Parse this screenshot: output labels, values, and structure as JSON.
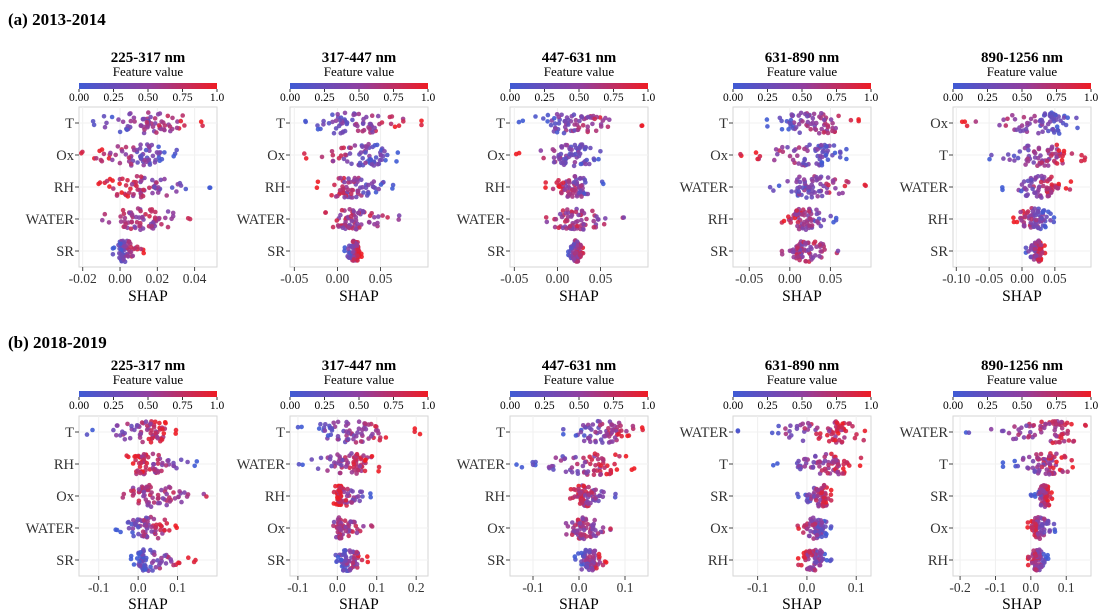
{
  "figure": {
    "rows": [
      {
        "label": "(a) 2013-2014"
      },
      {
        "label": "(b) 2018-2019"
      }
    ]
  },
  "colors": {
    "low": "#3f5bd4",
    "mid": "#8f3fa0",
    "high": "#ee1c24"
  },
  "chart_data": [
    {
      "type": "scatter",
      "panel": "a1",
      "title": "225-317 nm",
      "colorbar": {
        "label": "Feature value",
        "ticks": [
          "0.00",
          "0.25",
          "0.50",
          "0.75",
          "1.0"
        ]
      },
      "xlabel": "SHAP",
      "xlim": [
        -0.022,
        0.052
      ],
      "xticks": [
        -0.02,
        0.0,
        0.02,
        0.04
      ],
      "xtick_labels": [
        "-0.02",
        "0.00",
        "0.02",
        "0.04"
      ],
      "features": [
        "T",
        "Ox",
        "RH",
        "WATER",
        "SR"
      ],
      "distributions": [
        {
          "feature": "T",
          "min": -0.017,
          "max": 0.045,
          "center": 0.014,
          "trend": 1
        },
        {
          "feature": "Ox",
          "min": -0.021,
          "max": 0.031,
          "center": 0.01,
          "trend": -1
        },
        {
          "feature": "RH",
          "min": -0.012,
          "max": 0.049,
          "center": 0.012,
          "trend": -1
        },
        {
          "feature": "WATER",
          "min": -0.01,
          "max": 0.039,
          "center": 0.013,
          "trend": 0
        },
        {
          "feature": "SR",
          "min": -0.004,
          "max": 0.013,
          "center": 0.002,
          "trend": 1
        }
      ]
    },
    {
      "type": "scatter",
      "panel": "a2",
      "title": "317-447 nm",
      "colorbar": {
        "label": "Feature value",
        "ticks": [
          "0.00",
          "0.25",
          "0.50",
          "0.75",
          "1.0"
        ]
      },
      "xlabel": "SHAP",
      "xlim": [
        -0.055,
        0.105
      ],
      "xticks": [
        -0.05,
        0.0,
        0.05
      ],
      "xtick_labels": [
        "-0.05",
        "0.00",
        "0.05"
      ],
      "features": [
        "T",
        "Ox",
        "RH",
        "WATER",
        "SR"
      ],
      "distributions": [
        {
          "feature": "T",
          "min": -0.04,
          "max": 0.1,
          "center": 0.015,
          "trend": 1
        },
        {
          "feature": "Ox",
          "min": -0.04,
          "max": 0.07,
          "center": 0.03,
          "trend": -1
        },
        {
          "feature": "RH",
          "min": -0.025,
          "max": 0.065,
          "center": 0.015,
          "trend": -1
        },
        {
          "feature": "WATER",
          "min": -0.015,
          "max": 0.075,
          "center": 0.02,
          "trend": 0
        },
        {
          "feature": "SR",
          "min": 0.008,
          "max": 0.028,
          "center": 0.02,
          "trend": 1
        }
      ]
    },
    {
      "type": "scatter",
      "panel": "a3",
      "title": "447-631 nm",
      "colorbar": {
        "label": "Feature value",
        "ticks": [
          "0.00",
          "0.25",
          "0.50",
          "0.75",
          "1.0"
        ]
      },
      "xlabel": "SHAP",
      "xlim": [
        -0.055,
        0.105
      ],
      "xticks": [
        -0.05,
        0.0,
        0.05
      ],
      "xtick_labels": [
        "-0.05",
        "0.00",
        "0.05"
      ],
      "features": [
        "T",
        "Ox",
        "RH",
        "WATER",
        "SR"
      ],
      "distributions": [
        {
          "feature": "T",
          "min": -0.045,
          "max": 0.1,
          "center": 0.02,
          "trend": 1
        },
        {
          "feature": "Ox",
          "min": -0.05,
          "max": 0.05,
          "center": 0.02,
          "trend": -1
        },
        {
          "feature": "RH",
          "min": -0.015,
          "max": 0.055,
          "center": 0.02,
          "trend": -1
        },
        {
          "feature": "WATER",
          "min": -0.015,
          "max": 0.08,
          "center": 0.02,
          "trend": 0
        },
        {
          "feature": "SR",
          "min": 0.012,
          "max": 0.03,
          "center": 0.022,
          "trend": 1
        }
      ]
    },
    {
      "type": "scatter",
      "panel": "a4",
      "title": "631-890 nm",
      "colorbar": {
        "label": "Feature value",
        "ticks": [
          "0.00",
          "0.25",
          "0.50",
          "0.75",
          "1.0"
        ]
      },
      "xlabel": "SHAP",
      "xlim": [
        -0.07,
        0.1
      ],
      "xticks": [
        -0.05,
        0.0,
        0.05
      ],
      "xtick_labels": [
        "-0.05",
        "0.00",
        "0.05"
      ],
      "features": [
        "T",
        "Ox",
        "WATER",
        "RH",
        "SR"
      ],
      "distributions": [
        {
          "feature": "T",
          "min": -0.03,
          "max": 0.09,
          "center": 0.03,
          "trend": 1
        },
        {
          "feature": "Ox",
          "min": -0.065,
          "max": 0.07,
          "center": 0.03,
          "trend": -1
        },
        {
          "feature": "WATER",
          "min": -0.025,
          "max": 0.095,
          "center": 0.025,
          "trend": 1
        },
        {
          "feature": "RH",
          "min": -0.01,
          "max": 0.06,
          "center": 0.02,
          "trend": -1
        },
        {
          "feature": "SR",
          "min": -0.01,
          "max": 0.06,
          "center": 0.02,
          "trend": 0
        }
      ]
    },
    {
      "type": "scatter",
      "panel": "a5",
      "title": "890-1256 nm",
      "colorbar": {
        "label": "Feature value",
        "ticks": [
          "0.00",
          "0.25",
          "0.50",
          "0.75",
          "1.0"
        ]
      },
      "xlabel": "SHAP",
      "xlim": [
        -0.105,
        0.105
      ],
      "xticks": [
        -0.1,
        -0.05,
        0.0,
        0.05
      ],
      "xtick_labels": [
        "-0.10",
        "-0.05",
        "0.00",
        "0.05"
      ],
      "features": [
        "Ox",
        "T",
        "WATER",
        "RH",
        "SR"
      ],
      "distributions": [
        {
          "feature": "Ox",
          "min": -0.095,
          "max": 0.085,
          "center": 0.04,
          "trend": -1
        },
        {
          "feature": "T",
          "min": -0.055,
          "max": 0.1,
          "center": 0.03,
          "trend": 1
        },
        {
          "feature": "WATER",
          "min": -0.03,
          "max": 0.075,
          "center": 0.03,
          "trend": 1
        },
        {
          "feature": "RH",
          "min": -0.015,
          "max": 0.05,
          "center": 0.02,
          "trend": -1
        },
        {
          "feature": "SR",
          "min": 0.005,
          "max": 0.035,
          "center": 0.025,
          "trend": 1
        }
      ]
    },
    {
      "type": "scatter",
      "panel": "b1",
      "title": "225-317 nm",
      "colorbar": {
        "label": "Feature value",
        "ticks": [
          "0.00",
          "0.25",
          "0.50",
          "0.75",
          "1.0"
        ]
      },
      "xlabel": "SHAP",
      "xlim": [
        -0.15,
        0.2
      ],
      "xticks": [
        -0.1,
        0.0,
        0.1
      ],
      "xtick_labels": [
        "-0.1",
        "0.0",
        "0.1"
      ],
      "features": [
        "T",
        "RH",
        "Ox",
        "WATER",
        "SR"
      ],
      "distributions": [
        {
          "feature": "T",
          "min": -0.13,
          "max": 0.1,
          "center": 0.03,
          "trend": 1
        },
        {
          "feature": "RH",
          "min": -0.03,
          "max": 0.15,
          "center": 0.02,
          "trend": -1
        },
        {
          "feature": "Ox",
          "min": -0.04,
          "max": 0.18,
          "center": 0.03,
          "trend": 0
        },
        {
          "feature": "WATER",
          "min": -0.06,
          "max": 0.1,
          "center": 0.03,
          "trend": 1
        },
        {
          "feature": "SR",
          "min": -0.02,
          "max": 0.15,
          "center": 0.02,
          "trend": 1
        }
      ]
    },
    {
      "type": "scatter",
      "panel": "b2",
      "title": "317-447 nm",
      "colorbar": {
        "label": "Feature value",
        "ticks": [
          "0.00",
          "0.25",
          "0.50",
          "0.75",
          "1.0"
        ]
      },
      "xlabel": "SHAP",
      "xlim": [
        -0.12,
        0.23
      ],
      "xticks": [
        -0.1,
        0.0,
        0.1,
        0.2
      ],
      "xtick_labels": [
        "-0.1",
        "0.0",
        "0.1",
        "0.2"
      ],
      "features": [
        "T",
        "WATER",
        "RH",
        "Ox",
        "SR"
      ],
      "distributions": [
        {
          "feature": "T",
          "min": -0.1,
          "max": 0.21,
          "center": 0.04,
          "trend": 1
        },
        {
          "feature": "WATER",
          "min": -0.1,
          "max": 0.11,
          "center": 0.04,
          "trend": 1
        },
        {
          "feature": "RH",
          "min": -0.01,
          "max": 0.09,
          "center": 0.01,
          "trend": -1
        },
        {
          "feature": "Ox",
          "min": -0.01,
          "max": 0.09,
          "center": 0.01,
          "trend": 0
        },
        {
          "feature": "SR",
          "min": -0.005,
          "max": 0.08,
          "center": 0.025,
          "trend": 1
        }
      ]
    },
    {
      "type": "scatter",
      "panel": "b3",
      "title": "447-631 nm",
      "colorbar": {
        "label": "Feature value",
        "ticks": [
          "0.00",
          "0.25",
          "0.50",
          "0.75",
          "1.0"
        ]
      },
      "xlabel": "SHAP",
      "xlim": [
        -0.15,
        0.15
      ],
      "xticks": [
        -0.1,
        0.0,
        0.1
      ],
      "xtick_labels": [
        "-0.1",
        "0.0",
        "0.1"
      ],
      "features": [
        "T",
        "WATER",
        "RH",
        "Ox",
        "SR"
      ],
      "distributions": [
        {
          "feature": "T",
          "min": -0.04,
          "max": 0.14,
          "center": 0.05,
          "trend": 1
        },
        {
          "feature": "WATER",
          "min": -0.14,
          "max": 0.12,
          "center": 0.03,
          "trend": 1
        },
        {
          "feature": "RH",
          "min": -0.02,
          "max": 0.08,
          "center": 0.01,
          "trend": -1
        },
        {
          "feature": "Ox",
          "min": -0.03,
          "max": 0.07,
          "center": 0.01,
          "trend": 0
        },
        {
          "feature": "SR",
          "min": -0.01,
          "max": 0.06,
          "center": 0.02,
          "trend": 1
        }
      ]
    },
    {
      "type": "scatter",
      "panel": "b4",
      "title": "631-890 nm",
      "colorbar": {
        "label": "Feature value",
        "ticks": [
          "0.00",
          "0.25",
          "0.50",
          "0.75",
          "1.0"
        ]
      },
      "xlabel": "SHAP",
      "xlim": [
        -0.15,
        0.13
      ],
      "xticks": [
        -0.1,
        0.0,
        0.1
      ],
      "xtick_labels": [
        "-0.1",
        "0.0",
        "0.1"
      ],
      "features": [
        "WATER",
        "T",
        "SR",
        "Ox",
        "RH"
      ],
      "distributions": [
        {
          "feature": "WATER",
          "min": -0.15,
          "max": 0.12,
          "center": 0.05,
          "trend": 1
        },
        {
          "feature": "T",
          "min": -0.07,
          "max": 0.11,
          "center": 0.05,
          "trend": 1
        },
        {
          "feature": "SR",
          "min": -0.02,
          "max": 0.05,
          "center": 0.03,
          "trend": 1
        },
        {
          "feature": "Ox",
          "min": -0.02,
          "max": 0.05,
          "center": 0.02,
          "trend": -1
        },
        {
          "feature": "RH",
          "min": -0.02,
          "max": 0.05,
          "center": 0.015,
          "trend": -1
        }
      ]
    },
    {
      "type": "scatter",
      "panel": "b5",
      "title": "890-1256 nm",
      "colorbar": {
        "label": "Feature value",
        "ticks": [
          "0.00",
          "0.25",
          "0.50",
          "0.75",
          "1.0"
        ]
      },
      "xlabel": "SHAP",
      "xlim": [
        -0.22,
        0.17
      ],
      "xticks": [
        -0.2,
        -0.1,
        0.0,
        0.1
      ],
      "xtick_labels": [
        "-0.2",
        "-0.1",
        "0.0",
        "0.1"
      ],
      "features": [
        "WATER",
        "T",
        "SR",
        "Ox",
        "RH"
      ],
      "distributions": [
        {
          "feature": "WATER",
          "min": -0.2,
          "max": 0.16,
          "center": 0.06,
          "trend": 1
        },
        {
          "feature": "T",
          "min": -0.08,
          "max": 0.12,
          "center": 0.05,
          "trend": 1
        },
        {
          "feature": "SR",
          "min": 0.0,
          "max": 0.06,
          "center": 0.04,
          "trend": 1
        },
        {
          "feature": "Ox",
          "min": -0.01,
          "max": 0.07,
          "center": 0.025,
          "trend": -1
        },
        {
          "feature": "RH",
          "min": -0.01,
          "max": 0.05,
          "center": 0.02,
          "trend": -1
        }
      ]
    }
  ]
}
